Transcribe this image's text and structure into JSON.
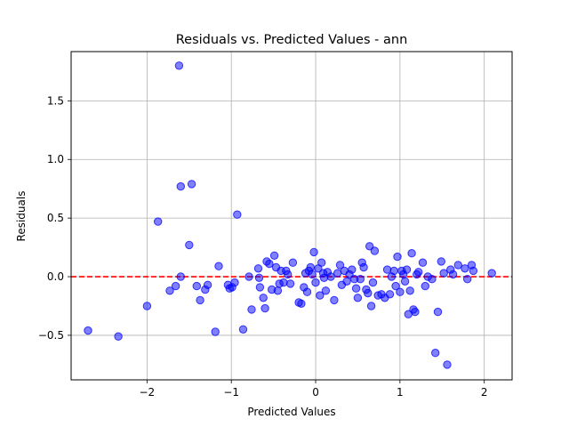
{
  "chart_data": {
    "type": "scatter",
    "title": "Residuals vs. Predicted Values - ann",
    "xlabel": "Predicted Values",
    "ylabel": "Residuals",
    "xlim": [
      -2.9,
      2.33
    ],
    "ylim": [
      -0.88,
      1.92
    ],
    "xticks": [
      -2,
      -1,
      0,
      1,
      2
    ],
    "xtick_labels": [
      "−2",
      "−1",
      "0",
      "1",
      "2"
    ],
    "yticks": [
      -0.5,
      0.0,
      0.5,
      1.0,
      1.5
    ],
    "ytick_labels": [
      "−0.5",
      "0.0",
      "0.5",
      "1.0",
      "1.5"
    ],
    "grid": true,
    "reference_line": {
      "y": 0,
      "style": "dashed",
      "color": "#ff0000"
    },
    "point_color": "#0000ff",
    "point_alpha": 0.5,
    "series": [
      {
        "points": [
          [
            -2.7,
            -0.46
          ],
          [
            -2.34,
            -0.51
          ],
          [
            -2.0,
            -0.25
          ],
          [
            -1.87,
            0.47
          ],
          [
            -1.73,
            -0.12
          ],
          [
            -1.66,
            -0.08
          ],
          [
            -1.62,
            1.8
          ],
          [
            -1.6,
            0.77
          ],
          [
            -1.6,
            0.0
          ],
          [
            -1.5,
            0.27
          ],
          [
            -1.47,
            0.79
          ],
          [
            -1.41,
            -0.08
          ],
          [
            -1.37,
            -0.2
          ],
          [
            -1.31,
            -0.11
          ],
          [
            -1.28,
            -0.07
          ],
          [
            -1.19,
            -0.47
          ],
          [
            -1.15,
            0.09
          ],
          [
            -1.04,
            -0.07
          ],
          [
            -1.02,
            -0.1
          ],
          [
            -0.99,
            -0.09
          ],
          [
            -0.96,
            -0.05
          ],
          [
            -0.93,
            0.53
          ],
          [
            -0.86,
            -0.45
          ],
          [
            -0.79,
            0.0
          ],
          [
            -0.76,
            -0.28
          ],
          [
            -0.68,
            0.07
          ],
          [
            -0.67,
            -0.01
          ],
          [
            -0.66,
            -0.09
          ],
          [
            -0.62,
            -0.18
          ],
          [
            -0.6,
            -0.27
          ],
          [
            -0.58,
            0.13
          ],
          [
            -0.55,
            0.11
          ],
          [
            -0.52,
            -0.11
          ],
          [
            -0.49,
            0.18
          ],
          [
            -0.47,
            0.08
          ],
          [
            -0.45,
            -0.12
          ],
          [
            -0.43,
            -0.06
          ],
          [
            -0.41,
            0.05
          ],
          [
            -0.38,
            -0.05
          ],
          [
            -0.35,
            0.05
          ],
          [
            -0.33,
            0.02
          ],
          [
            -0.3,
            -0.06
          ],
          [
            -0.27,
            0.12
          ],
          [
            -0.2,
            -0.22
          ],
          [
            -0.17,
            -0.23
          ],
          [
            -0.14,
            -0.09
          ],
          [
            -0.12,
            0.03
          ],
          [
            -0.1,
            -0.13
          ],
          [
            -0.08,
            0.05
          ],
          [
            -0.06,
            0.08
          ],
          [
            -0.04,
            0.02
          ],
          [
            -0.02,
            0.21
          ],
          [
            0.0,
            -0.05
          ],
          [
            0.03,
            0.07
          ],
          [
            0.05,
            -0.16
          ],
          [
            0.07,
            0.12
          ],
          [
            0.09,
            0.03
          ],
          [
            0.1,
            -0.01
          ],
          [
            0.12,
            -0.12
          ],
          [
            0.14,
            0.04
          ],
          [
            0.18,
            0.0
          ],
          [
            0.22,
            -0.2
          ],
          [
            0.26,
            0.03
          ],
          [
            0.29,
            0.1
          ],
          [
            0.31,
            -0.07
          ],
          [
            0.34,
            0.05
          ],
          [
            0.37,
            -0.04
          ],
          [
            0.4,
            0.02
          ],
          [
            0.43,
            0.06
          ],
          [
            0.46,
            -0.02
          ],
          [
            0.48,
            -0.1
          ],
          [
            0.5,
            -0.18
          ],
          [
            0.53,
            -0.02
          ],
          [
            0.55,
            0.12
          ],
          [
            0.57,
            0.08
          ],
          [
            0.6,
            -0.11
          ],
          [
            0.62,
            -0.14
          ],
          [
            0.64,
            0.26
          ],
          [
            0.66,
            -0.25
          ],
          [
            0.68,
            -0.05
          ],
          [
            0.7,
            0.22
          ],
          [
            0.74,
            -0.16
          ],
          [
            0.78,
            -0.15
          ],
          [
            0.82,
            -0.18
          ],
          [
            0.85,
            0.06
          ],
          [
            0.88,
            -0.15
          ],
          [
            0.9,
            0.0
          ],
          [
            0.93,
            0.05
          ],
          [
            0.95,
            -0.08
          ],
          [
            0.97,
            0.17
          ],
          [
            1.0,
            -0.13
          ],
          [
            1.02,
            0.05
          ],
          [
            1.04,
            0.02
          ],
          [
            1.06,
            -0.04
          ],
          [
            1.08,
            0.06
          ],
          [
            1.1,
            -0.32
          ],
          [
            1.12,
            -0.12
          ],
          [
            1.14,
            0.2
          ],
          [
            1.16,
            -0.28
          ],
          [
            1.18,
            -0.3
          ],
          [
            1.2,
            0.02
          ],
          [
            1.22,
            0.04
          ],
          [
            1.27,
            0.12
          ],
          [
            1.3,
            -0.08
          ],
          [
            1.33,
            0.0
          ],
          [
            1.38,
            -0.02
          ],
          [
            1.42,
            -0.65
          ],
          [
            1.45,
            -0.3
          ],
          [
            1.49,
            0.13
          ],
          [
            1.52,
            0.03
          ],
          [
            1.56,
            -0.75
          ],
          [
            1.6,
            0.06
          ],
          [
            1.63,
            0.02
          ],
          [
            1.69,
            0.1
          ],
          [
            1.77,
            0.07
          ],
          [
            1.8,
            -0.02
          ],
          [
            1.85,
            0.1
          ],
          [
            1.87,
            0.05
          ],
          [
            2.09,
            0.03
          ]
        ]
      }
    ]
  }
}
